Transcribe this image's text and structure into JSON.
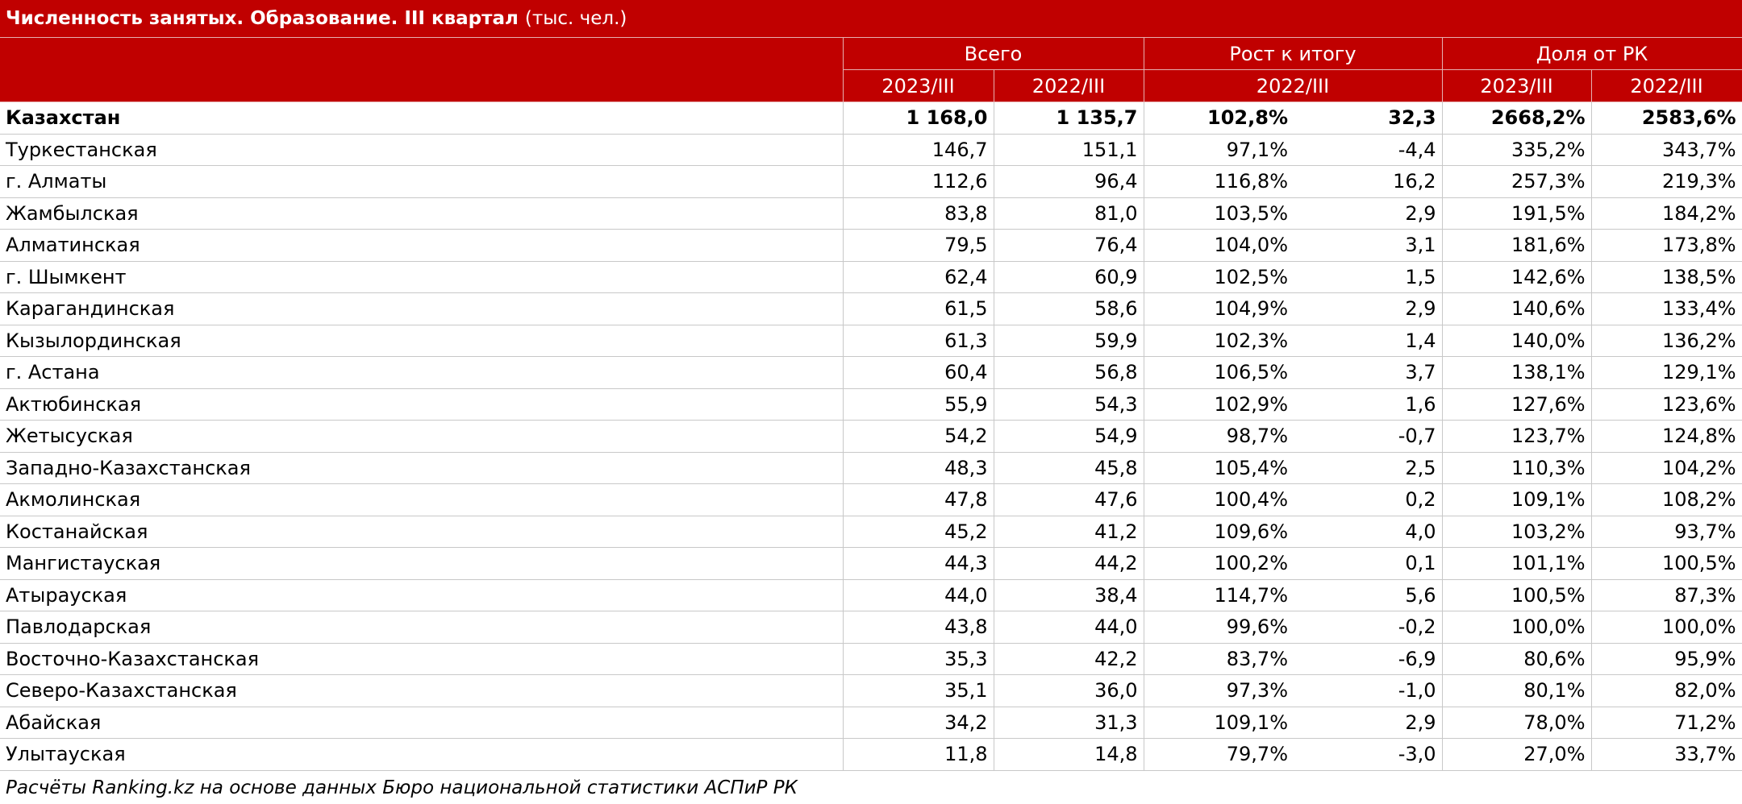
{
  "title": {
    "bold": "Численность занятых. Образование. III квартал",
    "unit": "(тыс. чел.)"
  },
  "header": {
    "total": "Всего",
    "growth": "Рост к итогу",
    "share": "Доля от РК",
    "y2023": "2023/III",
    "y2022": "2022/III",
    "g2022": "2022/III",
    "s2023": "2023/III",
    "s2022": "2022/III"
  },
  "chart_data": {
    "type": "table",
    "title": "Численность занятых. Образование. III квартал (тыс. чел.)",
    "columns": [
      "Всего 2023/III",
      "Всего 2022/III",
      "Рост к итогу 2022/III (%)",
      "Рост к итогу 2022/III",
      "Доля от РК 2023/III",
      "Доля от РК 2022/III"
    ],
    "rows": [
      {
        "name": "Казахстан",
        "v2023": "1 168,0",
        "v2022": "1 135,7",
        "growth_pct": "102,8%",
        "growth_abs": "32,3",
        "share2023": "2668,2%",
        "share2022": "2583,6%"
      },
      {
        "name": "Туркестанская",
        "v2023": "146,7",
        "v2022": "151,1",
        "growth_pct": "97,1%",
        "growth_abs": "-4,4",
        "share2023": "335,2%",
        "share2022": "343,7%"
      },
      {
        "name": "г. Алматы",
        "v2023": "112,6",
        "v2022": "96,4",
        "growth_pct": "116,8%",
        "growth_abs": "16,2",
        "share2023": "257,3%",
        "share2022": "219,3%"
      },
      {
        "name": "Жамбылская",
        "v2023": "83,8",
        "v2022": "81,0",
        "growth_pct": "103,5%",
        "growth_abs": "2,9",
        "share2023": "191,5%",
        "share2022": "184,2%"
      },
      {
        "name": "Алматинская",
        "v2023": "79,5",
        "v2022": "76,4",
        "growth_pct": "104,0%",
        "growth_abs": "3,1",
        "share2023": "181,6%",
        "share2022": "173,8%"
      },
      {
        "name": "г. Шымкент",
        "v2023": "62,4",
        "v2022": "60,9",
        "growth_pct": "102,5%",
        "growth_abs": "1,5",
        "share2023": "142,6%",
        "share2022": "138,5%"
      },
      {
        "name": "Карагандинская",
        "v2023": "61,5",
        "v2022": "58,6",
        "growth_pct": "104,9%",
        "growth_abs": "2,9",
        "share2023": "140,6%",
        "share2022": "133,4%"
      },
      {
        "name": "Кызылординская",
        "v2023": "61,3",
        "v2022": "59,9",
        "growth_pct": "102,3%",
        "growth_abs": "1,4",
        "share2023": "140,0%",
        "share2022": "136,2%"
      },
      {
        "name": "г. Астана",
        "v2023": "60,4",
        "v2022": "56,8",
        "growth_pct": "106,5%",
        "growth_abs": "3,7",
        "share2023": "138,1%",
        "share2022": "129,1%"
      },
      {
        "name": "Актюбинская",
        "v2023": "55,9",
        "v2022": "54,3",
        "growth_pct": "102,9%",
        "growth_abs": "1,6",
        "share2023": "127,6%",
        "share2022": "123,6%"
      },
      {
        "name": "Жетысуская",
        "v2023": "54,2",
        "v2022": "54,9",
        "growth_pct": "98,7%",
        "growth_abs": "-0,7",
        "share2023": "123,7%",
        "share2022": "124,8%"
      },
      {
        "name": "Западно-Казахстанская",
        "v2023": "48,3",
        "v2022": "45,8",
        "growth_pct": "105,4%",
        "growth_abs": "2,5",
        "share2023": "110,3%",
        "share2022": "104,2%"
      },
      {
        "name": "Акмолинская",
        "v2023": "47,8",
        "v2022": "47,6",
        "growth_pct": "100,4%",
        "growth_abs": "0,2",
        "share2023": "109,1%",
        "share2022": "108,2%"
      },
      {
        "name": "Костанайская",
        "v2023": "45,2",
        "v2022": "41,2",
        "growth_pct": "109,6%",
        "growth_abs": "4,0",
        "share2023": "103,2%",
        "share2022": "93,7%"
      },
      {
        "name": "Мангистауская",
        "v2023": "44,3",
        "v2022": "44,2",
        "growth_pct": "100,2%",
        "growth_abs": "0,1",
        "share2023": "101,1%",
        "share2022": "100,5%"
      },
      {
        "name": "Атырауская",
        "v2023": "44,0",
        "v2022": "38,4",
        "growth_pct": "114,7%",
        "growth_abs": "5,6",
        "share2023": "100,5%",
        "share2022": "87,3%"
      },
      {
        "name": "Павлодарская",
        "v2023": "43,8",
        "v2022": "44,0",
        "growth_pct": "99,6%",
        "growth_abs": "-0,2",
        "share2023": "100,0%",
        "share2022": "100,0%"
      },
      {
        "name": "Восточно-Казахстанская",
        "v2023": "35,3",
        "v2022": "42,2",
        "growth_pct": "83,7%",
        "growth_abs": "-6,9",
        "share2023": "80,6%",
        "share2022": "95,9%"
      },
      {
        "name": "Северо-Казахстанская",
        "v2023": "35,1",
        "v2022": "36,0",
        "growth_pct": "97,3%",
        "growth_abs": "-1,0",
        "share2023": "80,1%",
        "share2022": "82,0%"
      },
      {
        "name": "Абайская",
        "v2023": "34,2",
        "v2022": "31,3",
        "growth_pct": "109,1%",
        "growth_abs": "2,9",
        "share2023": "78,0%",
        "share2022": "71,2%"
      },
      {
        "name": "Улытауская",
        "v2023": "11,8",
        "v2022": "14,8",
        "growth_pct": "79,7%",
        "growth_abs": "-3,0",
        "share2023": "27,0%",
        "share2022": "33,7%"
      }
    ]
  },
  "footer": "Расчёты Ranking.kz на основе данных Бюро национальной статистики АСПиР РК",
  "colors": {
    "header_bg": "#c00000",
    "header_text": "#ffffff",
    "grid": "#c8c8c8"
  }
}
